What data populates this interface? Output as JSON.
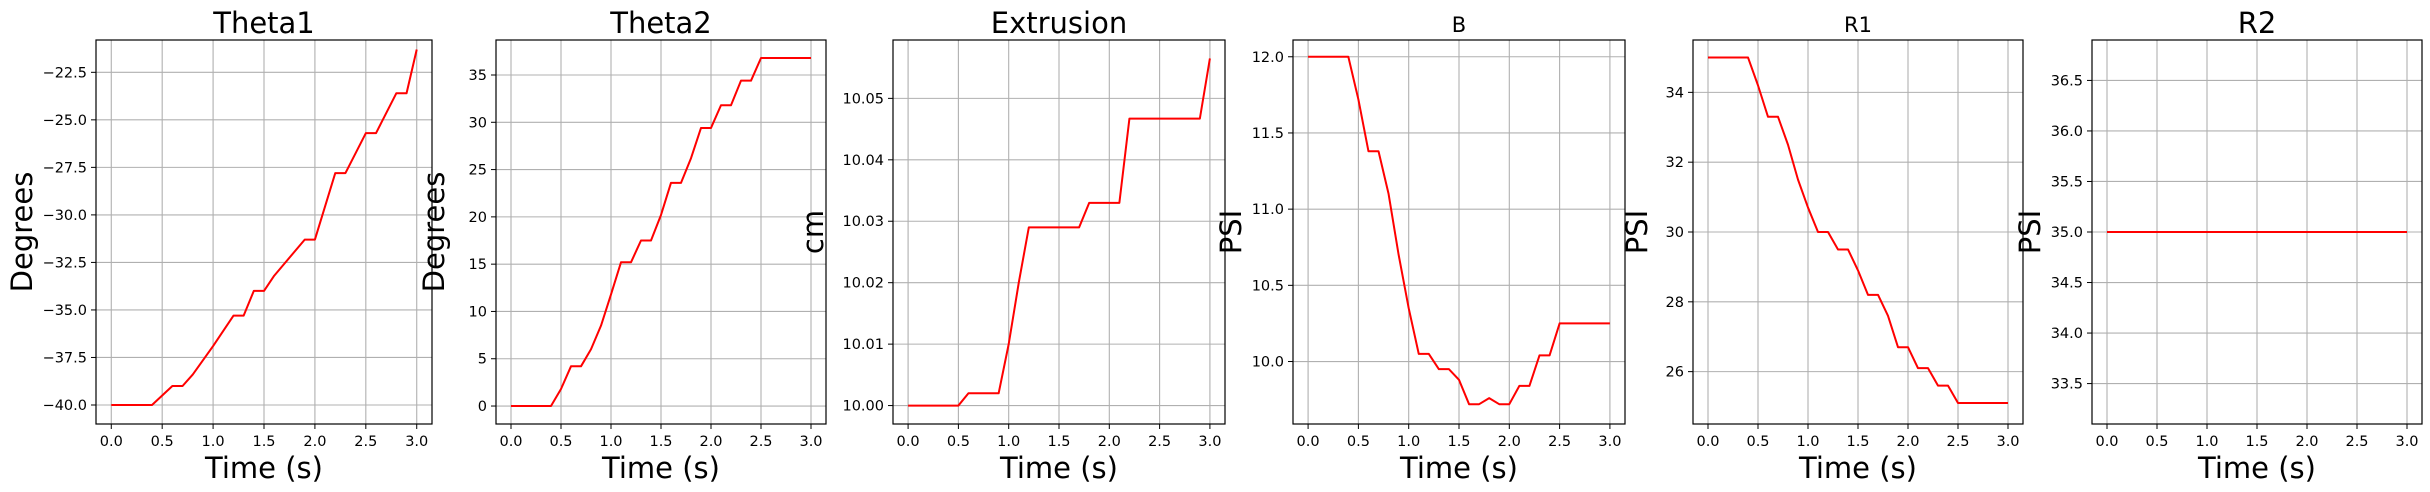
{
  "chart_data": [
    {
      "type": "line",
      "title": "Theta1",
      "xlabel": "Time (s)",
      "ylabel": "Degrees",
      "xlim": [
        -0.15,
        3.15
      ],
      "ylim": [
        -41.0,
        -20.8
      ],
      "xticks": [
        0,
        0.5,
        1,
        1.5,
        2,
        2.5,
        3
      ],
      "xtick_labels": [
        "0.0",
        "0.5",
        "1.0",
        "1.5",
        "2.0",
        "2.5",
        "3.0"
      ],
      "yticks": [
        -40,
        -37.5,
        -35,
        -32.5,
        -30,
        -27.5,
        -25,
        -22.5
      ],
      "ytick_labels": [
        "−40.0",
        "−37.5",
        "−35.0",
        "−32.5",
        "−30.0",
        "−27.5",
        "−25.0",
        "−22.5"
      ],
      "grid": true,
      "color": "#ff0000",
      "x": [
        0,
        0.4,
        0.6,
        0.7,
        0.8,
        1.0,
        1.2,
        1.3,
        1.4,
        1.5,
        1.6,
        1.9,
        2.0,
        2.2,
        2.3,
        2.5,
        2.6,
        2.8,
        2.9,
        3.0
      ],
      "y": [
        -40,
        -40,
        -39,
        -39,
        -38.4,
        -36.9,
        -35.3,
        -35.3,
        -34,
        -34,
        -33.2,
        -31.3,
        -31.3,
        -27.8,
        -27.8,
        -25.7,
        -25.7,
        -23.6,
        -23.6,
        -21.3
      ]
    },
    {
      "type": "line",
      "title": "Theta2",
      "xlabel": "Time (s)",
      "ylabel": "Degrees",
      "xlim": [
        -0.15,
        3.15
      ],
      "ylim": [
        -1.9,
        38.7
      ],
      "xticks": [
        0,
        0.5,
        1,
        1.5,
        2,
        2.5,
        3
      ],
      "xtick_labels": [
        "0.0",
        "0.5",
        "1.0",
        "1.5",
        "2.0",
        "2.5",
        "3.0"
      ],
      "yticks": [
        0,
        5,
        10,
        15,
        20,
        25,
        30,
        35
      ],
      "ytick_labels": [
        "0",
        "5",
        "10",
        "15",
        "20",
        "25",
        "30",
        "35"
      ],
      "grid": true,
      "color": "#ff0000",
      "x": [
        0,
        0.4,
        0.5,
        0.6,
        0.7,
        0.8,
        0.9,
        1.0,
        1.1,
        1.2,
        1.3,
        1.4,
        1.5,
        1.6,
        1.7,
        1.8,
        1.9,
        2.0,
        2.1,
        2.2,
        2.3,
        2.4,
        2.5,
        2.6,
        2.7,
        2.8,
        2.9,
        3.0
      ],
      "y": [
        0,
        0,
        1.8,
        4.2,
        4.2,
        6,
        8.5,
        11.8,
        15.2,
        15.2,
        17.5,
        17.5,
        20.2,
        23.6,
        23.6,
        26.2,
        29.4,
        29.4,
        31.8,
        31.8,
        34.4,
        34.4,
        36.8,
        36.8,
        36.8,
        36.8,
        36.8,
        36.8
      ]
    },
    {
      "type": "line",
      "title": "Extrusion",
      "xlabel": "Time (s)",
      "ylabel": "cm",
      "xlim": [
        -0.15,
        3.15
      ],
      "ylim": [
        9.997,
        10.0595
      ],
      "xticks": [
        0,
        0.5,
        1,
        1.5,
        2,
        2.5,
        3
      ],
      "xtick_labels": [
        "0.0",
        "0.5",
        "1.0",
        "1.5",
        "2.0",
        "2.5",
        "3.0"
      ],
      "yticks": [
        10.0,
        10.01,
        10.02,
        10.03,
        10.04,
        10.05
      ],
      "ytick_labels": [
        "10.00",
        "10.01",
        "10.02",
        "10.03",
        "10.04",
        "10.05"
      ],
      "grid": true,
      "color": "#ff0000",
      "x": [
        0,
        0.5,
        0.6,
        0.9,
        1.0,
        1.1,
        1.2,
        1.3,
        1.7,
        1.8,
        2.0,
        2.1,
        2.2,
        2.8,
        2.9,
        3.0
      ],
      "y": [
        10.0,
        10.0,
        10.002,
        10.002,
        10.01,
        10.02,
        10.029,
        10.029,
        10.029,
        10.033,
        10.033,
        10.033,
        10.0467,
        10.0467,
        10.0467,
        10.0565
      ]
    },
    {
      "type": "line",
      "title": "B",
      "xlabel": "Time (s)",
      "ylabel": "PSI",
      "xlim": [
        -0.15,
        3.15
      ],
      "ylim": [
        9.59,
        12.11
      ],
      "xticks": [
        0,
        0.5,
        1,
        1.5,
        2,
        2.5,
        3
      ],
      "xtick_labels": [
        "0.0",
        "0.5",
        "1.0",
        "1.5",
        "2.0",
        "2.5",
        "3.0"
      ],
      "yticks": [
        10.0,
        10.5,
        11.0,
        11.5,
        12.0
      ],
      "ytick_labels": [
        "10.0",
        "10.5",
        "11.0",
        "11.5",
        "12.0"
      ],
      "grid": true,
      "color": "#ff0000",
      "x": [
        0,
        0.4,
        0.5,
        0.6,
        0.7,
        0.8,
        0.9,
        1.0,
        1.1,
        1.2,
        1.3,
        1.4,
        1.5,
        1.6,
        1.7,
        1.8,
        1.9,
        2.0,
        2.1,
        2.2,
        2.3,
        2.4,
        2.5,
        2.6,
        2.7,
        2.8,
        2.9,
        3.0
      ],
      "y": [
        12,
        12,
        11.72,
        11.38,
        11.38,
        11.1,
        10.7,
        10.35,
        10.05,
        10.05,
        9.95,
        9.95,
        9.88,
        9.72,
        9.72,
        9.76,
        9.72,
        9.72,
        9.84,
        9.84,
        10.04,
        10.04,
        10.25,
        10.25,
        10.25,
        10.25,
        10.25,
        10.25
      ]
    },
    {
      "type": "line",
      "title": "R1",
      "xlabel": "Time (s)",
      "ylabel": "PSI",
      "xlim": [
        -0.15,
        3.15
      ],
      "ylim": [
        24.5,
        35.5
      ],
      "xticks": [
        0,
        0.5,
        1,
        1.5,
        2,
        2.5,
        3
      ],
      "xtick_labels": [
        "0.0",
        "0.5",
        "1.0",
        "1.5",
        "2.0",
        "2.5",
        "3.0"
      ],
      "yticks": [
        26,
        28,
        30,
        32,
        34
      ],
      "ytick_labels": [
        "26",
        "28",
        "30",
        "32",
        "34"
      ],
      "grid": true,
      "color": "#ff0000",
      "x": [
        0,
        0.4,
        0.5,
        0.6,
        0.7,
        0.8,
        0.9,
        1.0,
        1.1,
        1.2,
        1.3,
        1.4,
        1.5,
        1.6,
        1.7,
        1.8,
        1.9,
        2.0,
        2.1,
        2.2,
        2.3,
        2.4,
        2.5,
        2.6,
        2.7,
        2.8,
        2.9,
        3.0
      ],
      "y": [
        35,
        35,
        34.2,
        33.3,
        33.3,
        32.5,
        31.5,
        30.7,
        30,
        30,
        29.5,
        29.5,
        28.9,
        28.2,
        28.2,
        27.6,
        26.7,
        26.7,
        26.1,
        26.1,
        25.6,
        25.6,
        25.1,
        25.1,
        25.1,
        25.1,
        25.1,
        25.1
      ]
    },
    {
      "type": "line",
      "title": "R2",
      "xlabel": "Time (s)",
      "ylabel": "PSI",
      "xlim": [
        -0.15,
        3.15
      ],
      "ylim": [
        33.1,
        36.9
      ],
      "xticks": [
        0,
        0.5,
        1,
        1.5,
        2,
        2.5,
        3
      ],
      "xtick_labels": [
        "0.0",
        "0.5",
        "1.0",
        "1.5",
        "2.0",
        "2.5",
        "3.0"
      ],
      "yticks": [
        33.5,
        34.0,
        34.5,
        35.0,
        35.5,
        36.0,
        36.5
      ],
      "ytick_labels": [
        "33.5",
        "34.0",
        "34.5",
        "35.0",
        "35.5",
        "36.0",
        "36.5"
      ],
      "grid": true,
      "color": "#ff0000",
      "x": [
        0,
        3.0
      ],
      "y": [
        35,
        35
      ]
    }
  ]
}
